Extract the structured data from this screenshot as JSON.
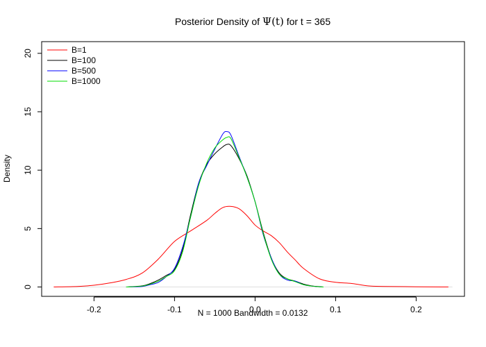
{
  "chart_data": {
    "type": "line",
    "title": {
      "prefix": "Posterior Density of ",
      "symbol": "Ψ(t)",
      "suffix": " for t = 365"
    },
    "xlabel": "N = 1000   Bandwidth = 0.0132",
    "ylabel": "Density",
    "xlim": [
      -0.265,
      0.26
    ],
    "ylim": [
      -0.8,
      21
    ],
    "xticks": [
      -0.2,
      -0.1,
      0.0,
      0.1,
      0.2
    ],
    "xtick_labels": [
      "-0.2",
      "-0.1",
      "0.0",
      "0.1",
      "0.2"
    ],
    "yticks": [
      0,
      5,
      10,
      15,
      20
    ],
    "ytick_labels": [
      "0",
      "5",
      "10",
      "15",
      "20"
    ],
    "baseline_y": 0,
    "legend_position": "top-left",
    "series": [
      {
        "name": "B=1",
        "color": "#ff0000",
        "x": [
          -0.25,
          -0.22,
          -0.2,
          -0.18,
          -0.16,
          -0.14,
          -0.12,
          -0.1,
          -0.08,
          -0.06,
          -0.05,
          -0.04,
          -0.03,
          -0.02,
          -0.01,
          0.0,
          0.01,
          0.02,
          0.03,
          0.04,
          0.05,
          0.06,
          0.08,
          0.1,
          0.12,
          0.14,
          0.16,
          0.2,
          0.24
        ],
        "y": [
          0.0,
          0.05,
          0.15,
          0.35,
          0.65,
          1.2,
          2.4,
          3.9,
          4.8,
          5.7,
          6.3,
          6.8,
          6.9,
          6.7,
          6.1,
          5.3,
          4.8,
          4.4,
          3.8,
          3.0,
          2.3,
          1.6,
          0.7,
          0.4,
          0.3,
          0.1,
          0.05,
          0.02,
          0.0
        ]
      },
      {
        "name": "B=100",
        "color": "#000000",
        "x": [
          -0.16,
          -0.14,
          -0.13,
          -0.12,
          -0.11,
          -0.1,
          -0.09,
          -0.08,
          -0.07,
          -0.06,
          -0.05,
          -0.04,
          -0.035,
          -0.03,
          -0.02,
          -0.01,
          0.0,
          0.01,
          0.02,
          0.03,
          0.04,
          0.05,
          0.06,
          0.07,
          0.08,
          0.085
        ],
        "y": [
          0.0,
          0.1,
          0.3,
          0.6,
          1.0,
          1.5,
          3.2,
          6.2,
          8.9,
          10.5,
          11.4,
          12.0,
          12.2,
          12.1,
          11.0,
          9.5,
          7.3,
          4.7,
          2.5,
          1.2,
          0.7,
          0.5,
          0.25,
          0.1,
          0.03,
          0.0
        ]
      },
      {
        "name": "B=500",
        "color": "#0000ff",
        "x": [
          -0.16,
          -0.14,
          -0.13,
          -0.12,
          -0.11,
          -0.1,
          -0.09,
          -0.08,
          -0.07,
          -0.06,
          -0.05,
          -0.04,
          -0.035,
          -0.03,
          -0.02,
          -0.01,
          0.0,
          0.01,
          0.02,
          0.03,
          0.04,
          0.05,
          0.06,
          0.07,
          0.08,
          0.085
        ],
        "y": [
          0.0,
          0.05,
          0.2,
          0.4,
          0.9,
          1.6,
          3.4,
          6.0,
          8.9,
          10.4,
          11.8,
          13.1,
          13.3,
          13.0,
          11.2,
          9.4,
          7.3,
          4.5,
          2.5,
          1.1,
          0.6,
          0.5,
          0.2,
          0.08,
          0.02,
          0.0
        ]
      },
      {
        "name": "B=1000",
        "color": "#00dd00",
        "x": [
          -0.16,
          -0.14,
          -0.13,
          -0.12,
          -0.11,
          -0.1,
          -0.09,
          -0.08,
          -0.07,
          -0.06,
          -0.05,
          -0.04,
          -0.035,
          -0.03,
          -0.02,
          -0.01,
          0.0,
          0.01,
          0.02,
          0.03,
          0.04,
          0.05,
          0.06,
          0.07,
          0.08,
          0.085
        ],
        "y": [
          0.0,
          0.08,
          0.25,
          0.5,
          0.9,
          1.4,
          3.0,
          6.0,
          8.7,
          10.6,
          11.9,
          12.6,
          12.8,
          12.7,
          11.1,
          9.4,
          7.3,
          4.6,
          2.4,
          1.1,
          0.7,
          0.45,
          0.2,
          0.08,
          0.02,
          0.0
        ]
      }
    ]
  }
}
